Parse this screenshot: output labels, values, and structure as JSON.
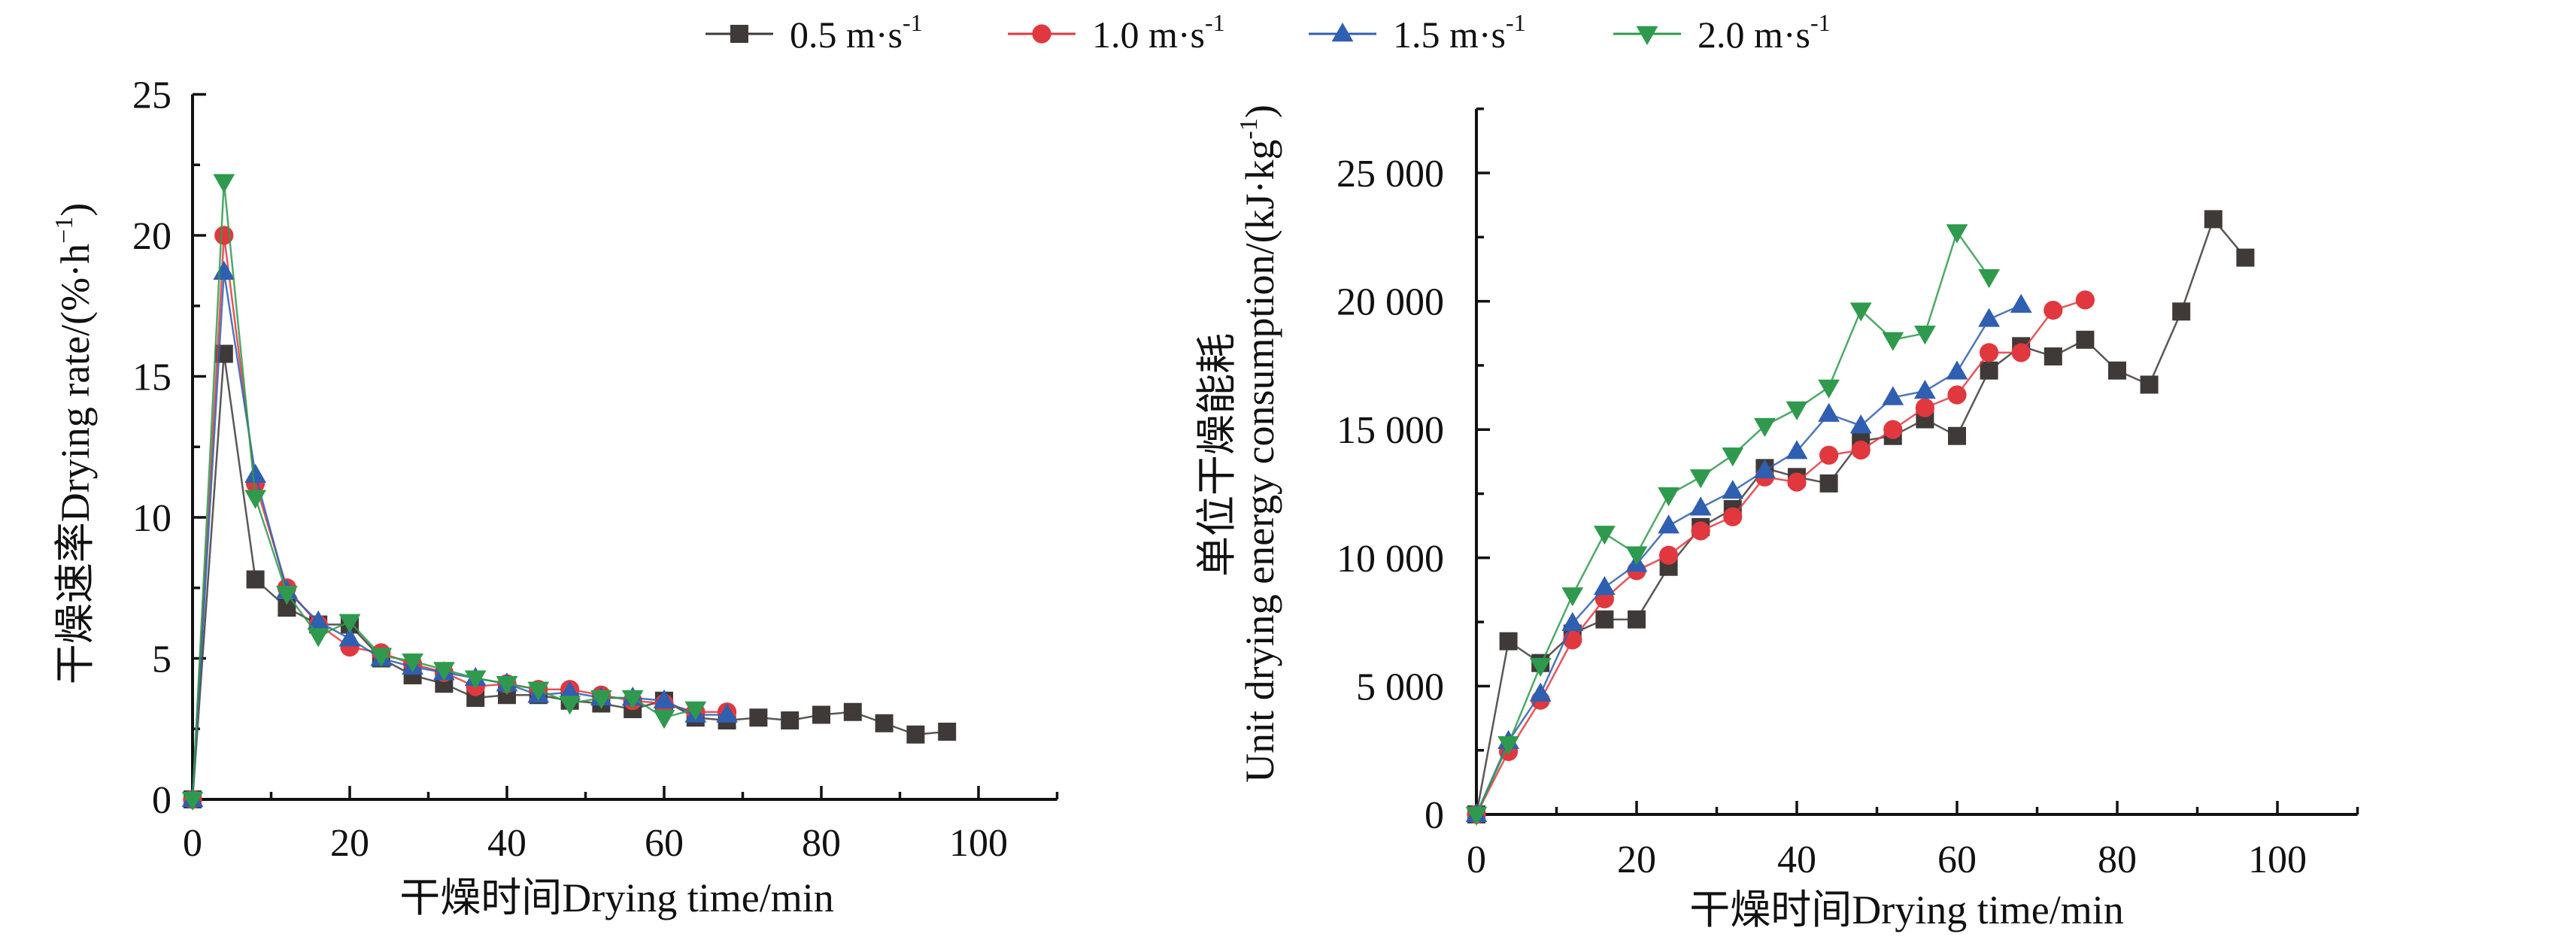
{
  "legend": {
    "position": "top-center",
    "entries": [
      {
        "label": "0.5 m·s",
        "sup": "-1",
        "color": "#3f3a38",
        "marker": "square"
      },
      {
        "label": "1.0 m·s",
        "sup": "-1",
        "color": "#e0383e",
        "marker": "circle"
      },
      {
        "label": "1.5 m·s",
        "sup": "-1",
        "color": "#2f5fb0",
        "marker": "triangle-up"
      },
      {
        "label": "2.0 m·s",
        "sup": "-1",
        "color": "#2f9a4e",
        "marker": "triangle-down"
      }
    ]
  },
  "chart_data": [
    {
      "type": "line",
      "title": "",
      "xlabel": "干燥时间Drying time/min",
      "ylabel": "干燥速率Drying rate/(%·h",
      "ylabel_sup": "−1",
      "ylabel_end": ")",
      "xlim": [
        0,
        110
      ],
      "ylim": [
        0,
        25
      ],
      "xticks": [
        0,
        20,
        40,
        60,
        80,
        100
      ],
      "yticks": [
        0,
        5,
        10,
        15,
        20,
        25
      ],
      "xtick_labels": [
        "0",
        "20",
        "40",
        "60",
        "80",
        "100"
      ],
      "ytick_labels": [
        "0",
        "5",
        "10",
        "15",
        "20",
        "25"
      ],
      "grid": false,
      "series": [
        {
          "name": "0.5 m·s-1",
          "x": [
            0,
            4,
            8,
            12,
            16,
            20,
            24,
            28,
            32,
            36,
            40,
            44,
            48,
            52,
            56,
            60,
            64,
            68,
            72,
            76,
            80,
            84,
            88,
            92,
            96
          ],
          "values": [
            0,
            15.8,
            7.8,
            6.8,
            6.2,
            6.2,
            5.0,
            4.4,
            4.1,
            3.6,
            3.7,
            3.7,
            3.5,
            3.4,
            3.2,
            3.5,
            2.9,
            2.8,
            2.9,
            2.8,
            3.0,
            3.1,
            2.7,
            2.3,
            2.4
          ]
        },
        {
          "name": "1.0 m·s-1",
          "x": [
            0,
            4,
            8,
            12,
            16,
            20,
            24,
            28,
            32,
            36,
            40,
            44,
            48,
            52,
            56,
            60,
            64,
            68
          ],
          "values": [
            0,
            20.0,
            11.2,
            7.5,
            6.2,
            5.4,
            5.2,
            4.8,
            4.5,
            4.0,
            4.1,
            3.9,
            3.9,
            3.7,
            3.5,
            3.4,
            3.1,
            3.1
          ]
        },
        {
          "name": "1.5 m·s-1",
          "x": [
            0,
            4,
            8,
            12,
            16,
            20,
            24,
            28,
            32,
            36,
            40,
            44,
            48,
            52,
            56,
            60,
            64,
            68
          ],
          "values": [
            0,
            18.7,
            11.5,
            7.4,
            6.3,
            5.7,
            5.0,
            4.7,
            4.5,
            4.3,
            4.1,
            3.7,
            3.8,
            3.6,
            3.6,
            3.5,
            3.0,
            3.0
          ]
        },
        {
          "name": "2.0 m·s-1",
          "x": [
            0,
            4,
            8,
            12,
            16,
            20,
            24,
            28,
            32,
            36,
            40,
            44,
            48,
            52,
            56,
            60,
            64
          ],
          "values": [
            0,
            21.9,
            10.7,
            7.3,
            5.8,
            6.3,
            5.1,
            4.9,
            4.6,
            4.3,
            4.1,
            3.9,
            3.4,
            3.6,
            3.6,
            2.9,
            3.2
          ]
        }
      ]
    },
    {
      "type": "line",
      "title": "",
      "xlabel": "干燥时间Drying time/min",
      "ylabel_line1": "单位干燥能耗",
      "ylabel": "Unit drying energy consumption/(kJ·kg",
      "ylabel_sup": "-1",
      "ylabel_end": ")",
      "xlim": [
        0,
        110
      ],
      "ylim": [
        0,
        27500
      ],
      "xticks": [
        0,
        20,
        40,
        60,
        80,
        100
      ],
      "yticks": [
        0,
        5000,
        10000,
        15000,
        20000,
        25000
      ],
      "xtick_labels": [
        "0",
        "20",
        "40",
        "60",
        "80",
        "100"
      ],
      "ytick_labels": [
        "0",
        "5 000",
        "10 000",
        "15 000",
        "20 000",
        "25 000"
      ],
      "grid": false,
      "series": [
        {
          "name": "0.5 m·s-1",
          "x": [
            0,
            4,
            8,
            12,
            16,
            20,
            24,
            28,
            32,
            36,
            40,
            44,
            48,
            52,
            56,
            60,
            64,
            68,
            72,
            76,
            80,
            84,
            88,
            92,
            96
          ],
          "values": [
            0,
            6750,
            5900,
            7050,
            7600,
            7600,
            9650,
            11200,
            11900,
            13500,
            13150,
            12900,
            14550,
            14750,
            15400,
            14750,
            17300,
            18250,
            17850,
            18500,
            17300,
            16750,
            19600,
            23200,
            21700
          ]
        },
        {
          "name": "1.0 m·s-1",
          "x": [
            0,
            4,
            8,
            12,
            16,
            20,
            24,
            28,
            32,
            36,
            40,
            44,
            48,
            52,
            56,
            60,
            64,
            68,
            72,
            76
          ],
          "values": [
            0,
            2450,
            4450,
            6800,
            8400,
            9500,
            10100,
            11050,
            11600,
            13150,
            12950,
            14000,
            14200,
            15000,
            15850,
            16350,
            18000,
            18000,
            19650,
            20050
          ]
        },
        {
          "name": "1.5 m·s-1",
          "x": [
            0,
            4,
            8,
            12,
            16,
            20,
            24,
            28,
            32,
            36,
            40,
            44,
            48,
            52,
            56,
            60,
            64,
            68
          ],
          "values": [
            0,
            2850,
            4700,
            7450,
            8850,
            9750,
            11250,
            11950,
            12600,
            13400,
            14150,
            15600,
            15150,
            16250,
            16500,
            17250,
            19300,
            19850
          ]
        },
        {
          "name": "2.0 m·s-1",
          "x": [
            0,
            4,
            8,
            12,
            16,
            20,
            24,
            28,
            32,
            36,
            40,
            44,
            48,
            52,
            56,
            60,
            64
          ],
          "values": [
            0,
            2750,
            5800,
            8550,
            10950,
            10150,
            12450,
            13150,
            14000,
            15150,
            15800,
            16650,
            19650,
            18500,
            18750,
            22700,
            20950
          ]
        }
      ]
    }
  ]
}
